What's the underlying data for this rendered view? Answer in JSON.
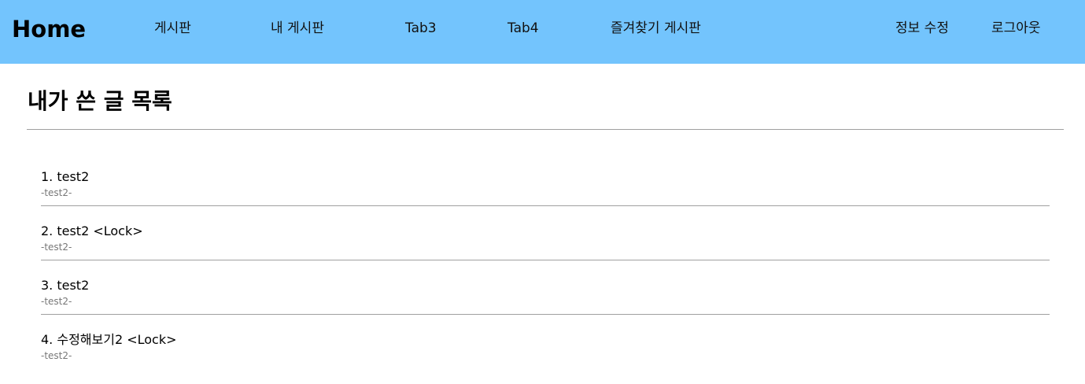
{
  "header": {
    "home_label": "Home",
    "nav": [
      "게시판",
      "내 게시판",
      "Tab3",
      "Tab4",
      "즐겨찾기 게시판"
    ],
    "right": [
      "정보 수정",
      "로그아웃"
    ],
    "background_color": "#73c4fd"
  },
  "main": {
    "title": "내가 쓴 글 목록",
    "posts": [
      {
        "title": "1. test2",
        "author": "-test2-"
      },
      {
        "title": "2. test2 <Lock>",
        "author": "-test2-"
      },
      {
        "title": "3. test2",
        "author": "-test2-"
      },
      {
        "title": "4. 수정해보기2 <Lock>",
        "author": "-test2-"
      }
    ]
  }
}
